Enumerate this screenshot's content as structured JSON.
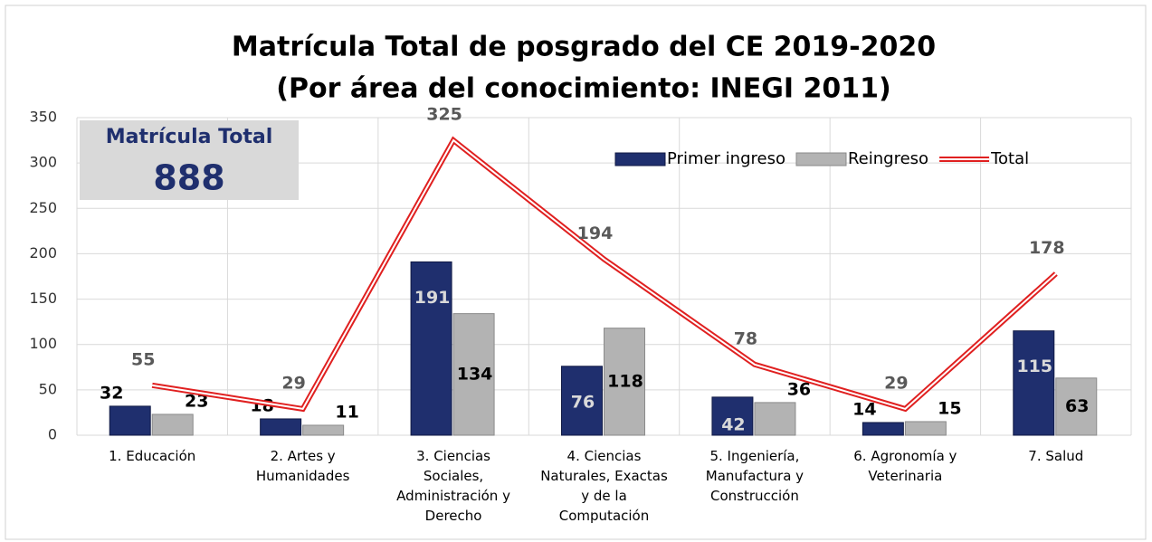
{
  "chart_data": {
    "type": "bar_line",
    "title": "Matrícula Total de posgrado del CE 2019-2020",
    "subtitle": "(Por área del conocimiento: INEGI 2011)",
    "annotation": {
      "label": "Matrícula Total",
      "value": 888
    },
    "categories": [
      "1. Educación",
      "2. Artes y Humanidades",
      "3. Ciencias Sociales, Administración y Derecho",
      "4. Ciencias Naturales, Exactas y de la Computación",
      "5. Ingeniería, Manufactura y Construcción",
      "6. Agronomía y Veterinaria",
      "7. Salud"
    ],
    "series": [
      {
        "name": "Primer ingreso",
        "type": "bar",
        "color": "#1f2f6e",
        "values": [
          32,
          18,
          191,
          76,
          42,
          14,
          115
        ]
      },
      {
        "name": "Reingreso",
        "type": "bar",
        "color": "#b3b3b3",
        "values": [
          23,
          11,
          134,
          118,
          36,
          15,
          63
        ]
      },
      {
        "name": "Total",
        "type": "line",
        "color": "#e02020",
        "values": [
          55,
          29,
          325,
          194,
          78,
          29,
          178
        ]
      }
    ],
    "ylim": [
      0,
      350
    ],
    "yticks": [
      0,
      50,
      100,
      150,
      200,
      250,
      300,
      350
    ],
    "grid": true,
    "legend": "top-right"
  }
}
